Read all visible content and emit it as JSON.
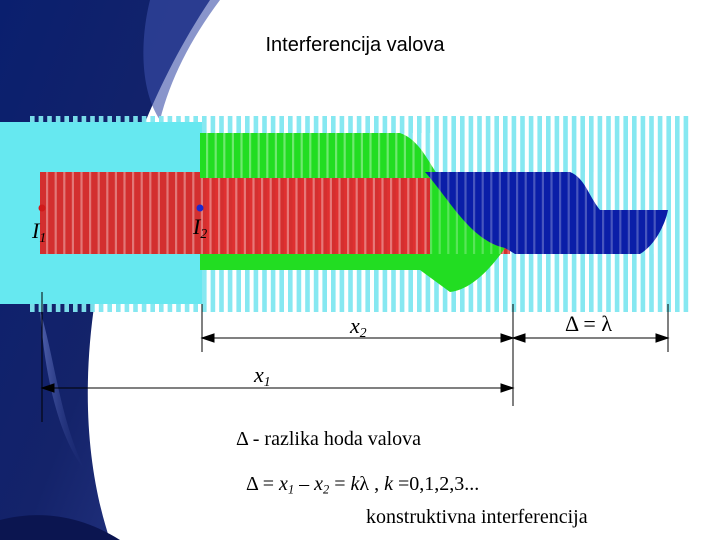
{
  "title": "Interferencija valova",
  "source_1": {
    "symbol": "I",
    "index": "1"
  },
  "source_2": {
    "symbol": "I",
    "index": "2"
  },
  "x2_label": {
    "symbol": "x",
    "index": "2"
  },
  "x1_label": {
    "symbol": "x",
    "index": "1"
  },
  "delta_label": "Δ = λ",
  "definition": "Δ - razlika hoda valova",
  "formula": {
    "delta": "Δ",
    "eq1": " = ",
    "x1": "x",
    "x1_index": "1",
    "minus": " – ",
    "x2": "x",
    "x2_index": "2",
    "eq2": " = ",
    "k": "k",
    "lambda": "λ",
    "sep": " , ",
    "k2": "k",
    "values": " =0,1,2,3..."
  },
  "conclusion": "konstruktivna interferencija",
  "colors": {
    "background_panel": "#0a1a5c",
    "wave_lines": "#7fe7f0",
    "cyan_block": "#66e8f0",
    "wave_1": "#dc1e1e",
    "wave_2": "#22dd22",
    "wave_sum": "#0a1ea8",
    "source_dot_1": "#d01a1a",
    "source_dot_2": "#1a2ad0"
  }
}
